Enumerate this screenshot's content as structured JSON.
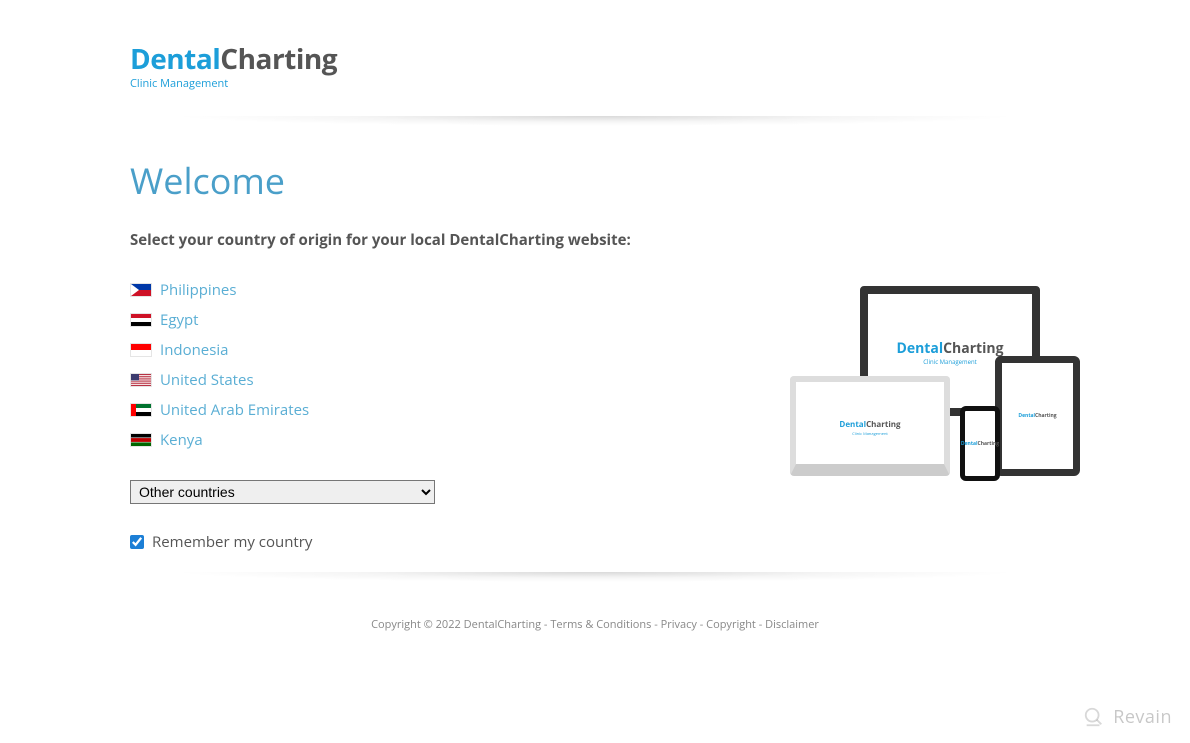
{
  "logo": {
    "part1": "Dental",
    "part2": "Charting",
    "tagline": "Clinic Management",
    "colors": {
      "accent": "#1c9ed9",
      "dark": "#555555"
    }
  },
  "heading": "Welcome",
  "instruction": "Select your country of origin for your local DentalCharting website:",
  "countries": [
    {
      "name": "Philippines",
      "flag": "ph"
    },
    {
      "name": "Egypt",
      "flag": "eg"
    },
    {
      "name": "Indonesia",
      "flag": "id"
    },
    {
      "name": "United States",
      "flag": "us"
    },
    {
      "name": "United Arab Emirates",
      "flag": "ae"
    },
    {
      "name": "Kenya",
      "flag": "ke"
    }
  ],
  "dropdown": {
    "placeholder": "Other countries"
  },
  "remember": {
    "label": "Remember my country",
    "checked": true
  },
  "footer": {
    "copyright": "Copyright © 2022 DentalCharting",
    "sep": " - ",
    "links": [
      "Terms & Conditions",
      "Privacy",
      "Copyright",
      "Disclaimer"
    ]
  },
  "watermark": "Revain",
  "style": {
    "heading_color": "#4a9fc9",
    "link_color": "#5aaed4",
    "text_color": "#555555",
    "font": "Segoe UI"
  },
  "flags": {
    "ph": [
      [
        "#0038a8",
        0,
        0,
        3,
        1
      ],
      [
        "#ce1126",
        0,
        1,
        3,
        1
      ],
      [
        "tri",
        "#ffffff"
      ]
    ],
    "eg": [
      [
        "#ce1126",
        0,
        0,
        3,
        0.666
      ],
      [
        "#ffffff",
        0,
        0.666,
        3,
        0.666
      ],
      [
        "#000000",
        0,
        1.333,
        3,
        0.666
      ]
    ],
    "id": [
      [
        "#ff0000",
        0,
        0,
        3,
        1
      ],
      [
        "#ffffff",
        0,
        1,
        3,
        1
      ]
    ],
    "us": [
      [
        "#b22234",
        0,
        0,
        3,
        2
      ],
      [
        "wstripes",
        "#ffffff"
      ],
      [
        "#3c3b6e",
        0,
        0,
        1.2,
        1.07
      ]
    ],
    "ae": [
      [
        "#00732f",
        0,
        0,
        3,
        0.666
      ],
      [
        "#ffffff",
        0,
        0.666,
        3,
        0.666
      ],
      [
        "#000000",
        0,
        1.333,
        3,
        0.666
      ],
      [
        "#ff0000",
        0,
        0,
        0.75,
        2
      ]
    ],
    "ke": [
      [
        "#000000",
        0,
        0,
        3,
        0.6
      ],
      [
        "#ffffff",
        0,
        0.6,
        3,
        0.8
      ],
      [
        "#bb0000",
        0,
        0.68,
        3,
        0.64
      ],
      [
        "#006600",
        0,
        1.4,
        3,
        0.6
      ]
    ]
  }
}
